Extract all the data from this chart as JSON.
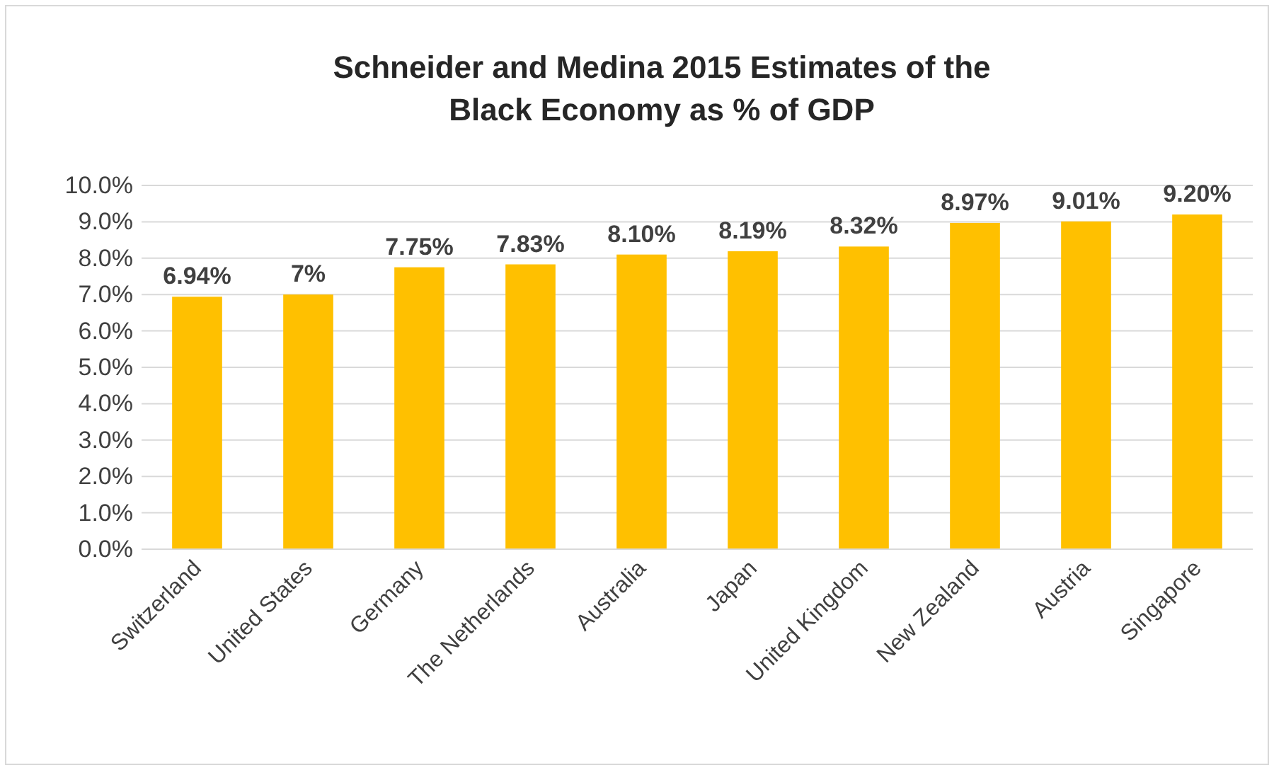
{
  "chart_data": {
    "type": "bar",
    "title": "Schneider and Medina 2015 Estimates of the Black Economy as % of GDP",
    "categories": [
      "Switzerland",
      "United States",
      "Germany",
      "The Netherlands",
      "Australia",
      "Japan",
      "United Kingdom",
      "New Zealand",
      "Austria",
      "Singapore"
    ],
    "values": [
      6.94,
      7,
      7.75,
      7.83,
      8.1,
      8.19,
      8.32,
      8.97,
      9.01,
      9.2
    ],
    "value_labels": [
      "6.94%",
      "7%",
      "7.75%",
      "7.83%",
      "8.10%",
      "8.19%",
      "8.32%",
      "8.97%",
      "9.01%",
      "9.20%"
    ],
    "color": "#ffc000",
    "ylim": [
      0,
      10
    ],
    "yticks": [
      {
        "value": 0,
        "label": "0.0%"
      },
      {
        "value": 1,
        "label": "1.0%"
      },
      {
        "value": 2,
        "label": "2.0%"
      },
      {
        "value": 3,
        "label": "3.0%"
      },
      {
        "value": 4,
        "label": "4.0%"
      },
      {
        "value": 5,
        "label": "5.0%"
      },
      {
        "value": 6,
        "label": "6.0%"
      },
      {
        "value": 7,
        "label": "7.0%"
      },
      {
        "value": 8,
        "label": "8.0%"
      },
      {
        "value": 9,
        "label": "9.0%"
      },
      {
        "value": 10,
        "label": "10.0%"
      }
    ],
    "grid": "y"
  }
}
